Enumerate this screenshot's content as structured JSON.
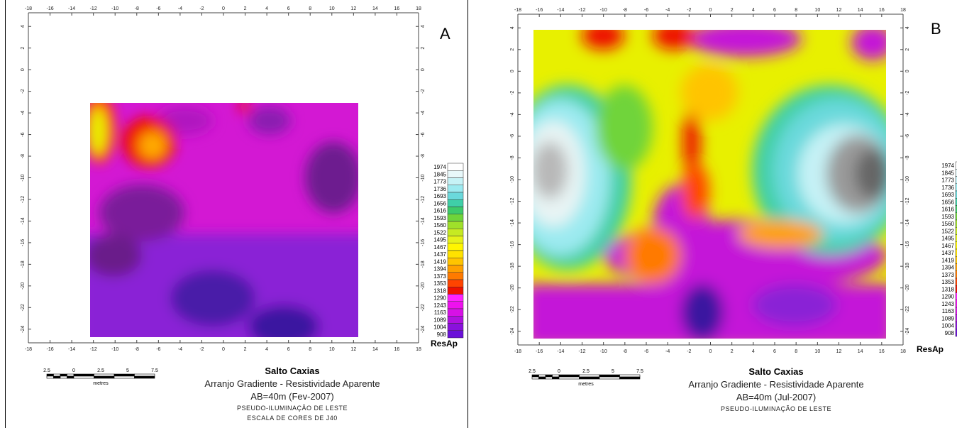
{
  "chart_data": [
    {
      "type": "heatmap",
      "panel_label": "A",
      "legend_title": "ResAp",
      "x_ticks": [
        -18,
        -16,
        -14,
        -12,
        -10,
        -8,
        -6,
        -4,
        -2,
        0,
        2,
        4,
        6,
        8,
        10,
        12,
        14,
        16,
        18
      ],
      "y_ticks": [
        4,
        2,
        0,
        -2,
        -4,
        -6,
        -8,
        -10,
        -12,
        -14,
        -16,
        -18,
        -20,
        -22,
        -24
      ],
      "xlim": [
        -18,
        18
      ],
      "ylim": [
        -25,
        5
      ],
      "data_extent": {
        "x": [
          -12.5,
          12.5
        ],
        "y": [
          -24.5,
          -2.5
        ]
      },
      "scale_bar": {
        "labels": [
          "2.5",
          "0",
          "2.5",
          "5",
          "7.5"
        ],
        "unit": "metres"
      },
      "caption": {
        "title": "Salto Caxias",
        "line1": "Arranjo Gradiente - Resistividade Aparente",
        "line2": "AB=40m (Fev-2007)",
        "line3": "PSEUDO-ILUMINAÇÃO DE LESTE",
        "line4": "ESCALA DE CORES DE J40"
      }
    },
    {
      "type": "heatmap",
      "panel_label": "B",
      "legend_title": "ResAp",
      "x_ticks": [
        -18,
        -16,
        -14,
        -12,
        -10,
        -8,
        -6,
        -4,
        -2,
        0,
        2,
        4,
        6,
        8,
        10,
        12,
        14,
        16,
        18
      ],
      "y_ticks": [
        4,
        2,
        0,
        -2,
        -4,
        -6,
        -8,
        -10,
        -12,
        -14,
        -16,
        -18,
        -20,
        -22,
        -24
      ],
      "xlim": [
        -18,
        18
      ],
      "ylim": [
        -25,
        5
      ],
      "data_extent": {
        "x": [
          -16.5,
          16.5
        ],
        "y": [
          -24.5,
          4.5
        ]
      },
      "scale_bar": {
        "labels": [
          "2.5",
          "0",
          "2.5",
          "5",
          "7.5"
        ],
        "unit": "metres"
      },
      "caption": {
        "title": "Salto Caxias",
        "line1": "Arranjo Gradiente - Resistividade Aparente",
        "line2": "AB=40m (Jul-2007)",
        "line3": "PSEUDO-ILUMINAÇÃO DE LESTE"
      }
    }
  ],
  "legend": {
    "values": [
      1974,
      1845,
      1773,
      1736,
      1693,
      1656,
      1616,
      1593,
      1560,
      1522,
      1495,
      1467,
      1437,
      1419,
      1394,
      1373,
      1353,
      1318,
      1290,
      1243,
      1163,
      1089,
      1004,
      908
    ],
    "colors": [
      "#ffffff",
      "#e8f8fa",
      "#c6f2f6",
      "#9ceaf0",
      "#6ad9dc",
      "#3fcfa8",
      "#3dca6a",
      "#6fd43a",
      "#9fe02a",
      "#c6ea22",
      "#e6f21a",
      "#fff600",
      "#ffe200",
      "#ffc400",
      "#ffa000",
      "#ff7a00",
      "#ff4400",
      "#ee1100",
      "#ff22ff",
      "#ee11ee",
      "#d711e6",
      "#b011e0",
      "#8a11dc",
      "#6a11d8"
    ]
  }
}
